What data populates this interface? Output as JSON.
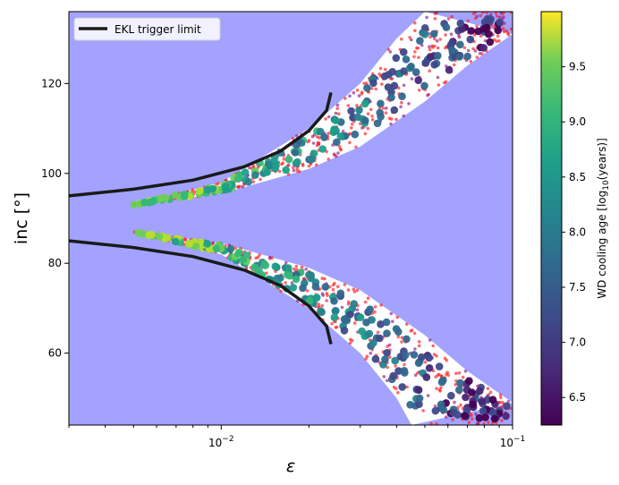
{
  "chart_data": {
    "type": "scatter",
    "title": "",
    "xlabel": "ε",
    "ylabel": "inc [°]",
    "xscale": "log",
    "xlim": [
      0.003,
      0.1
    ],
    "ylim": [
      44,
      136
    ],
    "x_ticks": [
      {
        "value": 0.01,
        "label": "10",
        "exp": "−2"
      },
      {
        "value": 0.1,
        "label": "10",
        "exp": "−1"
      }
    ],
    "y_ticks": [
      {
        "value": 60,
        "label": "60"
      },
      {
        "value": 80,
        "label": "80"
      },
      {
        "value": 100,
        "label": "100"
      },
      {
        "value": 120,
        "label": "120"
      }
    ],
    "grid": false,
    "legend": {
      "placement": "top-left",
      "entries": [
        "EKL trigger limit"
      ]
    },
    "colorbar": {
      "label": "WD cooling age [log10(years)]",
      "range": [
        6.25,
        10.0
      ],
      "ticks": [
        "6.5",
        "7.0",
        "7.5",
        "8.0",
        "8.5",
        "9.0",
        "9.5"
      ],
      "colormap": "viridis"
    },
    "background_region": {
      "name": "excluded region",
      "color": "#a3a3ff"
    },
    "allowed_band": {
      "upper_inner": [
        [
          0.005,
          93
        ],
        [
          0.01,
          95.5
        ],
        [
          0.02,
          101
        ],
        [
          0.03,
          106
        ],
        [
          0.05,
          116
        ],
        [
          0.07,
          124
        ],
        [
          0.1,
          131
        ]
      ],
      "upper_outer": [
        [
          0.005,
          93
        ],
        [
          0.01,
          98
        ],
        [
          0.02,
          110
        ],
        [
          0.03,
          120
        ],
        [
          0.04,
          130
        ],
        [
          0.05,
          136
        ]
      ],
      "lower_inner": [
        [
          0.005,
          87
        ],
        [
          0.01,
          84.5
        ],
        [
          0.02,
          79
        ],
        [
          0.03,
          74
        ],
        [
          0.05,
          64
        ],
        [
          0.07,
          56
        ],
        [
          0.1,
          49
        ]
      ],
      "lower_outer": [
        [
          0.005,
          87
        ],
        [
          0.01,
          82
        ],
        [
          0.02,
          70
        ],
        [
          0.03,
          60
        ],
        [
          0.04,
          50
        ],
        [
          0.045,
          44
        ]
      ]
    },
    "series": [
      {
        "name": "EKL trigger limit",
        "color": "#1a1a1a",
        "points": [
          [
            0.003,
            95
          ],
          [
            0.005,
            96.5
          ],
          [
            0.008,
            98.5
          ],
          [
            0.012,
            101.5
          ],
          [
            0.016,
            105
          ],
          [
            0.02,
            109.5
          ],
          [
            0.023,
            114
          ],
          [
            0.0238,
            118
          ]
        ]
      },
      {
        "name": "EKL trigger limit",
        "color": "#1a1a1a",
        "points": [
          [
            0.003,
            85
          ],
          [
            0.005,
            83.5
          ],
          [
            0.008,
            81.5
          ],
          [
            0.012,
            78.5
          ],
          [
            0.016,
            75
          ],
          [
            0.02,
            70.5
          ],
          [
            0.023,
            66
          ],
          [
            0.0238,
            62
          ]
        ]
      }
    ]
  }
}
